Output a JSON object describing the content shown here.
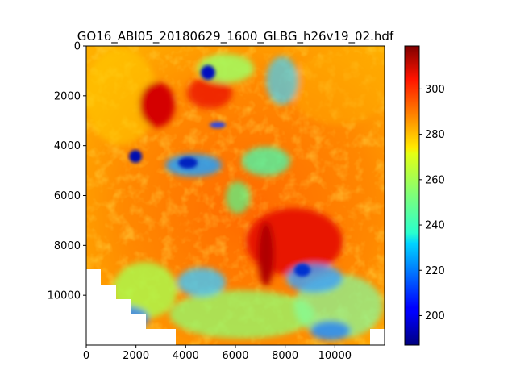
{
  "chart_data": {
    "type": "heatmap",
    "title": "GO16_ABI05_20180629_1600_GLBG_h26v19_02.hdf",
    "xlim": [
      0,
      12000
    ],
    "ylim": [
      12000,
      0
    ],
    "xticks": [
      "0",
      "2000",
      "4000",
      "6000",
      "8000",
      "10000"
    ],
    "yticks": [
      "0",
      "2000",
      "4000",
      "6000",
      "8000",
      "10000"
    ],
    "colorbar": {
      "colormap": "jet",
      "range": [
        187,
        319
      ],
      "ticks": [
        "200",
        "220",
        "240",
        "260",
        "280",
        "300"
      ]
    },
    "grid": false
  }
}
